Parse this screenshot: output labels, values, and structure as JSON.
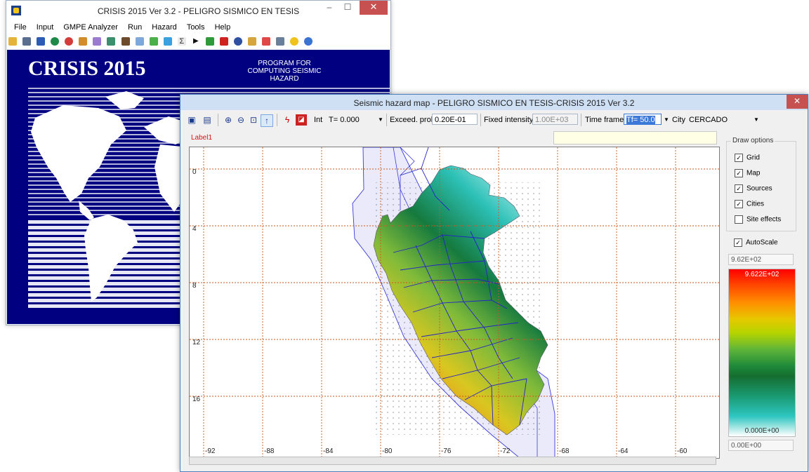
{
  "main_window": {
    "title": "CRISIS 2015 Ver 3.2 - PELIGRO SISMICO EN TESIS",
    "minimize": "–",
    "maximize": "☐",
    "close": "✕",
    "menu": [
      "File",
      "Input",
      "GMPE Analyzer",
      "Run",
      "Hazard",
      "Tools",
      "Help"
    ],
    "splash_title": "CRISIS 2015",
    "splash_line1": "PROGRAM FOR COMPUTING SEISMIC",
    "splash_line2": "HAZARD"
  },
  "map_window": {
    "title": "Seismic hazard map - PELIGRO SISMICO EN TESIS-CRISIS 2015 Ver 3.2",
    "close": "✕",
    "toolbar": {
      "int_label": "Int",
      "int_value": "T= 0.000",
      "exceed_label": "Exceed. prob.",
      "exceed_value": "0.20E-01",
      "fixed_label": "Fixed intensity",
      "fixed_value": "1.00E+03",
      "time_label": "Time frame",
      "time_value": "Tf= 50.0",
      "city_label": "City",
      "city_value": "CERCADO"
    },
    "label1": "Label1",
    "map": {
      "x_ticks": [
        "-92",
        "-88",
        "-84",
        "-80",
        "-76",
        "-72",
        "-68",
        "-64",
        "-60"
      ],
      "y_ticks": [
        "0",
        "4",
        "8",
        "12",
        "16"
      ]
    },
    "draw_options": {
      "legend": "Draw options",
      "items": [
        {
          "label": "Grid",
          "checked": true
        },
        {
          "label": "Map",
          "checked": true
        },
        {
          "label": "Sources",
          "checked": true
        },
        {
          "label": "Cities",
          "checked": true
        },
        {
          "label": "Site effects",
          "checked": false
        }
      ],
      "autoscale": "AutoScale"
    },
    "scale_top": "9.62E+02",
    "scale_max_label": "9.622E+02",
    "scale_min_label": "0.000E+00",
    "scale_bottom": "0.00E+00"
  }
}
